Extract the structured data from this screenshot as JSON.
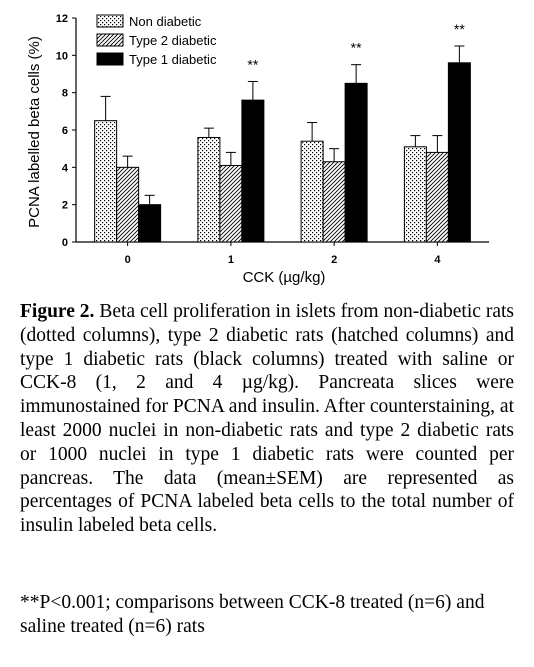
{
  "chart_data": {
    "type": "bar",
    "xlabel": "CCK (µg/kg)",
    "ylabel": "PCNA labelled beta cells (%)",
    "categories": [
      "0",
      "1",
      "2",
      "4"
    ],
    "ylim": [
      0,
      12
    ],
    "yticks": [
      "0",
      "2",
      "4",
      "6",
      "8",
      "10",
      "12"
    ],
    "grid": false,
    "legend_position": "top-left",
    "series": [
      {
        "name": "Non diabetic",
        "pattern": "dotted",
        "color": "#ffffff",
        "values": [
          6.5,
          5.6,
          5.4,
          5.1
        ],
        "errors": [
          1.3,
          0.5,
          1.0,
          0.6
        ]
      },
      {
        "name": "Type 2 diabetic",
        "pattern": "hatched",
        "color": "#ffffff",
        "values": [
          4.0,
          4.1,
          4.3,
          4.8
        ],
        "errors": [
          0.6,
          0.7,
          0.7,
          0.9
        ]
      },
      {
        "name": "Type 1 diabetic",
        "pattern": "solid",
        "color": "#000000",
        "values": [
          2.0,
          7.6,
          8.5,
          9.6
        ],
        "errors": [
          0.5,
          1.0,
          1.0,
          0.9
        ]
      }
    ],
    "annotations": [
      {
        "category": "1",
        "series": "Type 1 diabetic",
        "text": "**"
      },
      {
        "category": "2",
        "series": "Type 1 diabetic",
        "text": "**"
      },
      {
        "category": "4",
        "series": "Type 1 diabetic",
        "text": "**"
      }
    ]
  },
  "caption": {
    "label": "Figure 2.",
    "text": "Beta cell proliferation in islets from non-diabetic rats (dotted columns), type 2 diabetic rats (hatched columns) and type 1 diabetic rats (black columns) treated with saline or CCK-8 (1, 2 and 4 µg/kg). Pancreata slices were immunostained for PCNA and insulin. After counterstaining, at least 2000 nuclei in non-diabetic rats and type 2 diabetic rats or 1000 nuclei in type 1 diabetic rats were counted per pancreas. The data (mean±SEM) are represented as percentages of PCNA labeled beta cells to the total number of insulin labeled beta cells."
  },
  "footnote": "**P<0.001; comparisons between CCK-8 treated (n=6) and saline treated (n=6) rats"
}
